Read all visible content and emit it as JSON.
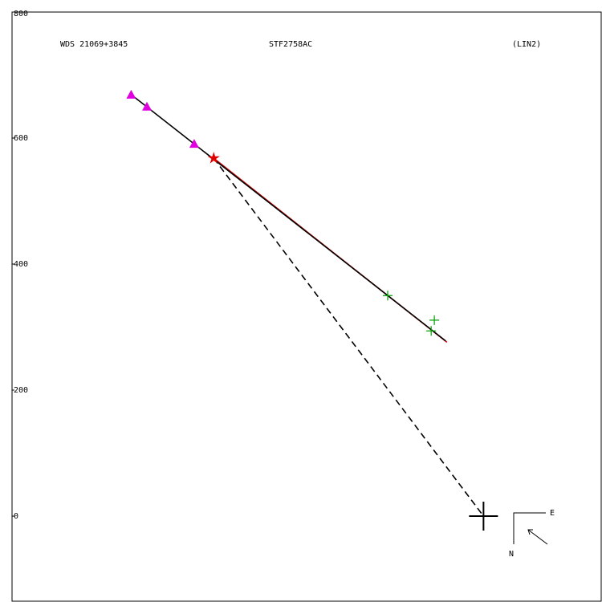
{
  "chart_data": {
    "type": "scatter",
    "header": [
      "WDS 21069+3845",
      "STF2758AC",
      "(LIN2)"
    ],
    "compass": {
      "east": "E",
      "north": "N"
    },
    "xlim": [
      -748,
      188
    ],
    "ylim": [
      -135,
      800
    ],
    "yticks": [
      800,
      600,
      400,
      200,
      0
    ],
    "series": [
      {
        "marker": "triangle",
        "color": "#e000e0",
        "x": [
          -559,
          -534,
          -459
        ],
        "y": [
          669,
          650,
          591
        ]
      },
      {
        "marker": "star",
        "color": "#e00000",
        "x": [
          -428
        ],
        "y": [
          568
        ]
      },
      {
        "marker": "plus",
        "color": "#00a000",
        "x": [
          -152,
          -78,
          -83
        ],
        "y": [
          350,
          311,
          294
        ]
      },
      {
        "marker": "cross",
        "color": "#000000",
        "x": [
          0
        ],
        "y": [
          0
        ]
      }
    ],
    "lines": [
      {
        "color": "#e00000",
        "dash": false,
        "x": [
          -428,
          -58
        ],
        "y": [
          568,
          276
        ]
      },
      {
        "color": "#000000",
        "dash": false,
        "x": [
          -559,
          -60
        ],
        "y": [
          669,
          278
        ]
      },
      {
        "color": "#000000",
        "dash": true,
        "x": [
          -428,
          0
        ],
        "y": [
          568,
          0
        ]
      }
    ]
  }
}
